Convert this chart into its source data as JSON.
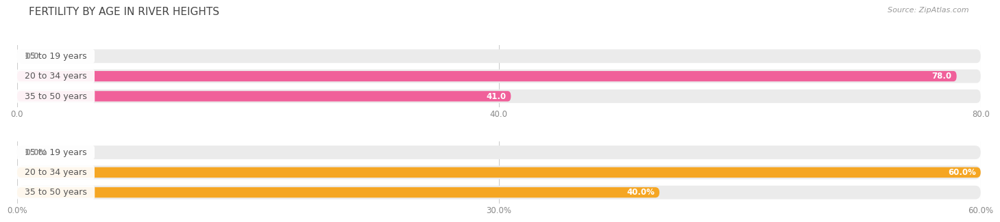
{
  "title": "FERTILITY BY AGE IN RIVER HEIGHTS",
  "source": "Source: ZipAtlas.com",
  "top_section": {
    "categories": [
      "15 to 19 years",
      "20 to 34 years",
      "35 to 50 years"
    ],
    "values": [
      0.0,
      78.0,
      41.0
    ],
    "value_labels": [
      "0.0",
      "78.0",
      "41.0"
    ],
    "xlim_max": 80.0,
    "xticks": [
      0.0,
      40.0,
      80.0
    ],
    "xtick_labels": [
      "0.0",
      "40.0",
      "80.0"
    ],
    "bar_color": "#F0609A",
    "bg_color": "#EBEBEB"
  },
  "bottom_section": {
    "categories": [
      "15 to 19 years",
      "20 to 34 years",
      "35 to 50 years"
    ],
    "values": [
      0.0,
      60.0,
      40.0
    ],
    "value_labels": [
      "0.0%",
      "60.0%",
      "40.0%"
    ],
    "xlim_max": 60.0,
    "xticks": [
      0.0,
      30.0,
      60.0
    ],
    "xtick_labels": [
      "0.0%",
      "30.0%",
      "60.0%"
    ],
    "bar_color": "#F5A623",
    "bg_color": "#EBEBEB"
  },
  "background_color": "#FFFFFF",
  "title_fontsize": 11,
  "source_fontsize": 8,
  "tick_fontsize": 8.5,
  "bar_label_fontsize": 8.5,
  "category_fontsize": 9,
  "bar_height": 0.52,
  "bg_bar_height": 0.68,
  "cat_label_box_color": "#FFFFFF",
  "cat_label_text_color": "#555555",
  "grid_color": "#CCCCCC",
  "value_label_inside_color": "#FFFFFF",
  "value_label_outside_color": "#999999"
}
